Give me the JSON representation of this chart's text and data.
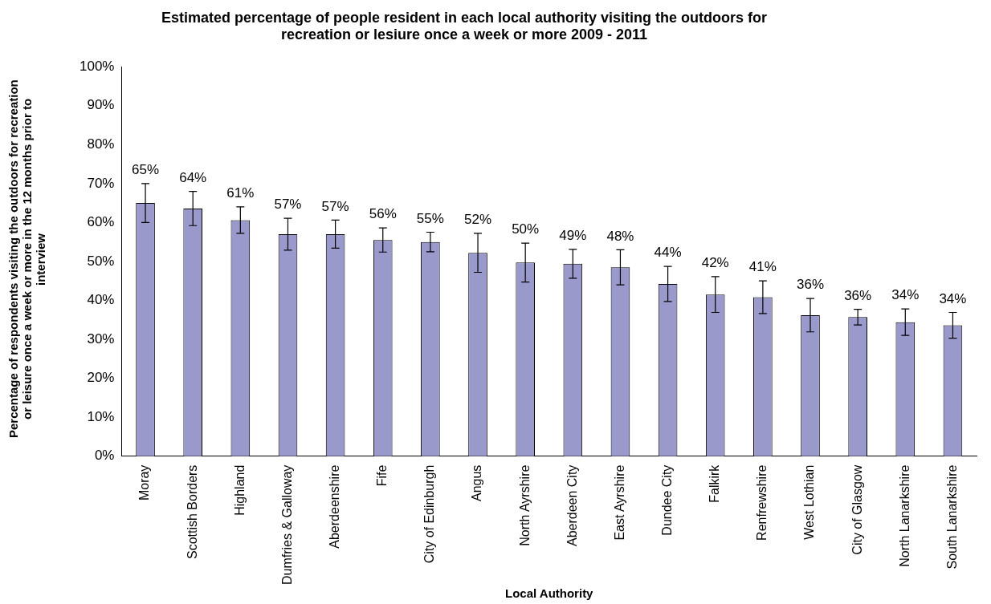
{
  "chart_data": {
    "type": "bar",
    "title": "Estimated percentage of people resident in each local authority visiting the outdoors for recreation or lesiure once a week or more 2009 - 2011",
    "xlabel": "Local Authority",
    "ylabel": "Percentage of respondents visiting the outdoors for recreation or leisure once a week or more in the 12 months prior to interview",
    "categories": [
      "Moray",
      "Scottish Borders",
      "Highland",
      "Dumfries & Galloway",
      "Aberdeenshire",
      "Fife",
      "City of Edinburgh",
      "Angus",
      "North Ayrshire",
      "Aberdeen City",
      "East Ayrshire",
      "Dundee City",
      "Falkirk",
      "Renfrewshire",
      "West Lothian",
      "City of Glasgow",
      "North Lanarkshire",
      "South Lanarkshire"
    ],
    "values": [
      65,
      63.6,
      60.6,
      57,
      57,
      55.5,
      55,
      52.2,
      49.7,
      49.4,
      48.5,
      44.2,
      41.5,
      40.8,
      36.2,
      35.7,
      34.4,
      33.6
    ],
    "errors": [
      5,
      4.4,
      3.4,
      4.1,
      3.6,
      3.1,
      2.5,
      5,
      5,
      3.7,
      4.5,
      4.5,
      4.6,
      4.2,
      4.3,
      2,
      3.4,
      3.3
    ],
    "value_labels": [
      "65%",
      "64%",
      "61%",
      "57%",
      "57%",
      "56%",
      "55%",
      "52%",
      "50%",
      "49%",
      "48%",
      "44%",
      "42%",
      "41%",
      "36%",
      "36%",
      "34%",
      "34%"
    ],
    "color": "#9999cc",
    "ylim": [
      0,
      100
    ],
    "yticks": [
      {
        "value": 0,
        "label": "0%"
      },
      {
        "value": 10,
        "label": "10%"
      },
      {
        "value": 20,
        "label": "20%"
      },
      {
        "value": 30,
        "label": "30%"
      },
      {
        "value": 40,
        "label": "40%"
      },
      {
        "value": 50,
        "label": "50%"
      },
      {
        "value": 60,
        "label": "60%"
      },
      {
        "value": 70,
        "label": "70%"
      },
      {
        "value": 80,
        "label": "80%"
      },
      {
        "value": 90,
        "label": "90%"
      },
      {
        "value": 100,
        "label": "100%"
      }
    ],
    "grid": false,
    "legend": false
  }
}
